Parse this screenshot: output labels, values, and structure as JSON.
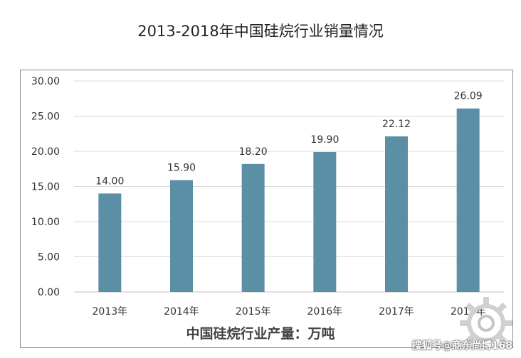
{
  "chart_data": {
    "type": "bar",
    "title": "2013-2018年中国硅烷行业销量情况",
    "xlabel": "中国硅烷行业产量：万吨",
    "ylabel": "",
    "categories": [
      "2013年",
      "2014年",
      "2015年",
      "2016年",
      "2017年",
      "2018年"
    ],
    "values": [
      14.0,
      15.9,
      18.2,
      19.9,
      22.12,
      26.09
    ],
    "data_labels": [
      "14.00",
      "15.90",
      "18.20",
      "19.90",
      "22.12",
      "26.09"
    ],
    "ylim": [
      0,
      30
    ],
    "yticks": [
      "0.00",
      "5.00",
      "10.00",
      "15.00",
      "20.00",
      "25.00",
      "30.00"
    ],
    "grid": true,
    "bar_color": "#5b8fa6"
  },
  "watermark": "搜狐号@商东尚博168"
}
